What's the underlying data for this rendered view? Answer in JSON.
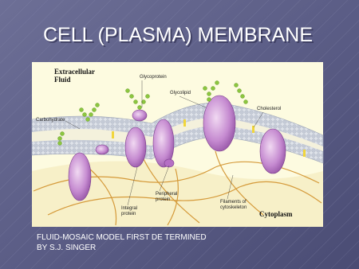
{
  "slide": {
    "title": "CELL (PLASMA) MEMBRANE",
    "diagram": {
      "labels": {
        "extracellular": [
          "Extracellular",
          "Fluid"
        ],
        "glycoprotein": [
          "Glycoprotein"
        ],
        "glycolipid": [
          "Glycolipid"
        ],
        "cholesterol": [
          "Cholesterol"
        ],
        "carbohydrate": [
          "Carbohydrate"
        ],
        "peripheral": [
          "Peripheral",
          "protein"
        ],
        "integral": [
          "Integral",
          "protein"
        ],
        "filaments": [
          "Filaments of",
          "cytoskeleton"
        ],
        "cytoplasm": [
          "Cytoplasm"
        ]
      }
    },
    "caption": [
      "FLUID-MOSAIC MODEL FIRST DE TERMINED",
      "BY S.J. SINGER"
    ]
  }
}
